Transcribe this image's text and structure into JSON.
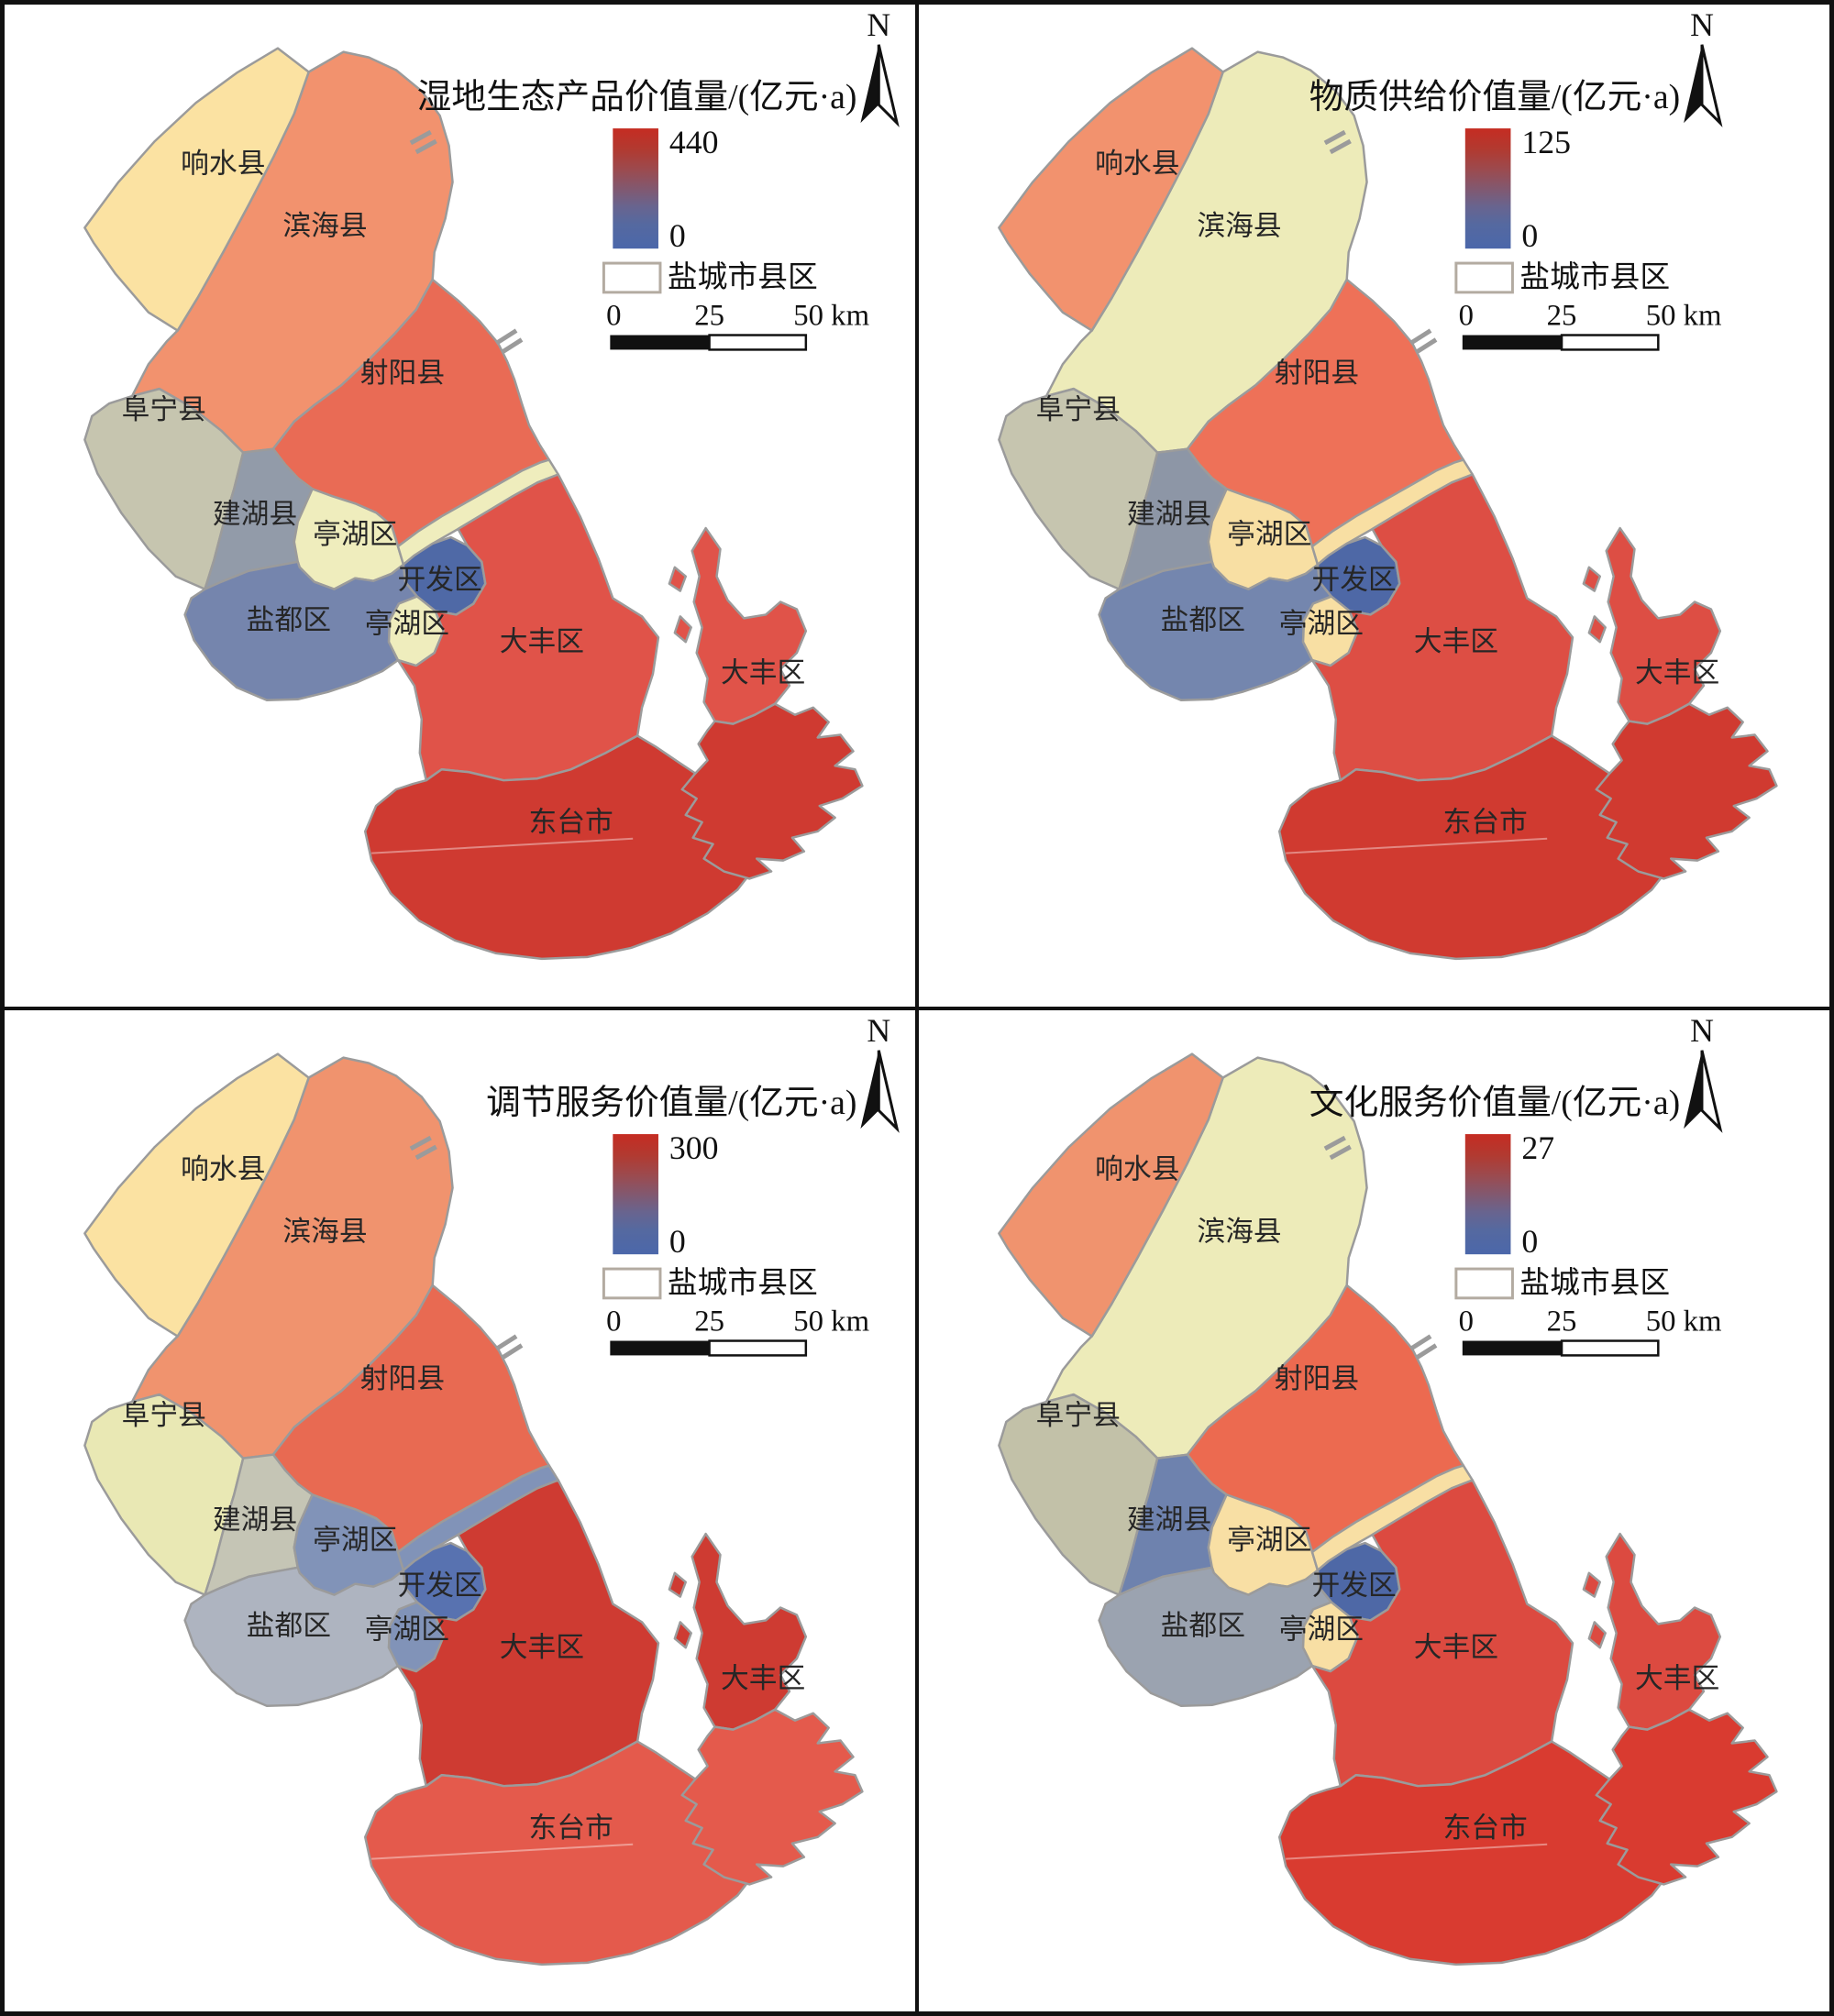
{
  "figure": {
    "background": "#ffffff",
    "frame_color": "#111111",
    "region_border_color": "#9b9b9b",
    "label_color": "#262626",
    "gradient_top_color": "#c52c22",
    "gradient_bottom_color": "#4b67aa"
  },
  "shared": {
    "north_label": "N",
    "layer_label": "盐城市县区",
    "scale_ticks": [
      "0",
      "25",
      "50 km"
    ]
  },
  "district_labels": {
    "xiangshui": "响水县",
    "binhai": "滨海县",
    "sheyang": "射阳县",
    "funing": "阜宁县",
    "jianhu": "建湖县",
    "tinghu": "亭湖区",
    "tinghu_south": "亭湖区",
    "kaifaqu": "开发区",
    "yandu": "盐都区",
    "dafeng": "大丰区",
    "dafeng_island": "大丰区",
    "dongtai": "东台市"
  },
  "panels": [
    {
      "id": "wetland-total",
      "title": "湿地生态产品价值量/(亿元·a)",
      "legend_max": "440",
      "legend_min": "0",
      "colors": {
        "xiangshui": "#FBE2A2",
        "binhai": "#F2926E",
        "sheyang": "#E96B55",
        "funing": "#C6C5AF",
        "jianhu": "#929BA9",
        "tinghu": "#EFEDBD",
        "kaifaqu": "#4F69A6",
        "yandu": "#7585AD",
        "dafeng": "#E05349",
        "dongtai": "#CF3A31"
      }
    },
    {
      "id": "material-supply",
      "title": "物质供给价值量/(亿元·a)",
      "legend_max": "125",
      "legend_min": "0",
      "colors": {
        "xiangshui": "#F2926E",
        "binhai": "#EDEBB9",
        "sheyang": "#EE7158",
        "funing": "#C6C5AF",
        "jianhu": "#8D96A6",
        "tinghu": "#F8DFA3",
        "kaifaqu": "#4E68A6",
        "yandu": "#7486AE",
        "dafeng": "#DD4E44",
        "dongtai": "#D03A30"
      }
    },
    {
      "id": "regulation-service",
      "title": "调节服务价值量/(亿元·a)",
      "legend_max": "300",
      "legend_min": "0",
      "colors": {
        "xiangshui": "#FBE2A2",
        "binhai": "#F0936E",
        "sheyang": "#E86A52",
        "funing": "#E9E8B4",
        "jianhu": "#C5C5B5",
        "tinghu": "#8193B8",
        "kaifaqu": "#5872B0",
        "yandu": "#AEB4C0",
        "dafeng": "#CE3B32",
        "dongtai": "#E45A4C"
      }
    },
    {
      "id": "culture-service",
      "title": "文化服务价值量/(亿元·a)",
      "legend_max": "27",
      "legend_min": "0",
      "colors": {
        "xiangshui": "#F0936E",
        "binhai": "#EDEBB9",
        "sheyang": "#EC6A50",
        "funing": "#C2C1A8",
        "jianhu": "#6E82AE",
        "tinghu": "#F8DFA4",
        "kaifaqu": "#4E68A6",
        "yandu": "#9BA3B0",
        "dafeng": "#DC4A40",
        "dongtai": "#D93B30"
      }
    }
  ]
}
